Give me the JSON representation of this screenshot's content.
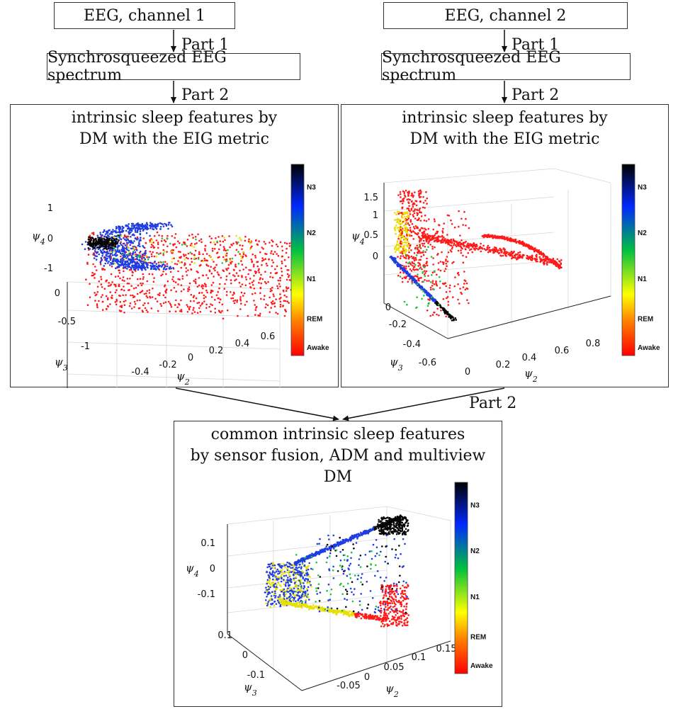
{
  "boxes": {
    "ch1": "EEG, channel 1",
    "ch2": "EEG, channel 2",
    "spec1": "Synchrosqueezed EEG spectrum",
    "spec2": "Synchrosqueezed EEG spectrum"
  },
  "steps": {
    "part1_left": "Part 1",
    "part1_right": "Part 1",
    "part2_left": "Part 2",
    "part2_right": "Part 2",
    "part2_bottom": "Part 2"
  },
  "panels": {
    "left": {
      "title1": "intrinsic sleep features by",
      "title2": "DM with the EIG metric"
    },
    "right": {
      "title1": "intrinsic sleep features by",
      "title2": "DM with the EIG metric"
    },
    "bottom": {
      "title1": "common intrinsic sleep features",
      "title2": "by sensor fusion, ADM and multiview DM"
    }
  },
  "colorbar": {
    "labels": [
      "N3",
      "N2",
      "N1",
      "REM",
      "Awake"
    ],
    "colors": [
      "#000000",
      "#0028ff",
      "#00c040",
      "#ffff00",
      "#ff8000",
      "#ff0000"
    ]
  },
  "axes_names": {
    "psi2": "ψ2",
    "psi3": "ψ3",
    "psi4": "ψ4"
  },
  "chart_data": [
    {
      "type": "scatter",
      "title": "",
      "xlabel": "ψ2",
      "ylabel": "ψ3",
      "zlabel": "ψ4",
      "x_ticks": [
        "-0.4",
        "-0.2",
        "0",
        "0.2",
        "0.4",
        "0.6"
      ],
      "y_ticks": [
        "0",
        "-0.5",
        "-1"
      ],
      "z_ticks": [
        "1",
        "0",
        "-1"
      ],
      "colorbar_labels": [
        "N3",
        "N2",
        "N1",
        "REM",
        "Awake"
      ]
    },
    {
      "type": "scatter",
      "title": "",
      "xlabel": "ψ2",
      "ylabel": "ψ3",
      "zlabel": "ψ4",
      "x_ticks": [
        "0",
        "0.2",
        "0.4",
        "0.6",
        "0.8"
      ],
      "y_ticks": [
        "0",
        "-0.2",
        "-0.4",
        "-0.6"
      ],
      "z_ticks": [
        "1.5",
        "1",
        "0.5",
        "0"
      ],
      "colorbar_labels": [
        "N3",
        "N2",
        "N1",
        "REM",
        "Awake"
      ]
    },
    {
      "type": "scatter",
      "title": "",
      "xlabel": "ψ2",
      "ylabel": "ψ3",
      "zlabel": "ψ4",
      "x_ticks": [
        "-0.05",
        "0",
        "0.05",
        "0.1",
        "0.15"
      ],
      "y_ticks": [
        "0.1",
        "0",
        "-0.1"
      ],
      "z_ticks": [
        "0.1",
        "0",
        "-0.1"
      ],
      "colorbar_labels": [
        "N3",
        "N2",
        "N1",
        "REM",
        "Awake"
      ]
    }
  ]
}
